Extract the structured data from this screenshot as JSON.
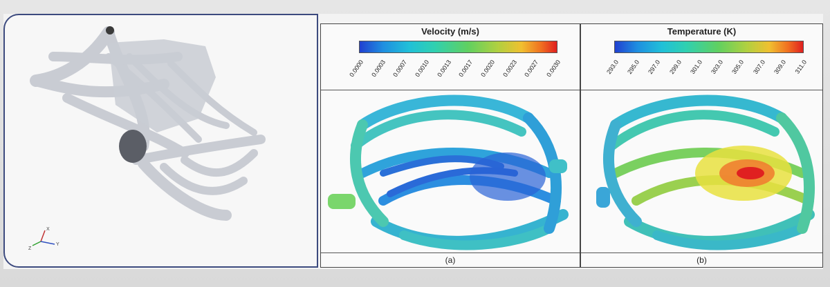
{
  "panel_a": {
    "title": "Velocity (m/s)",
    "ticks": [
      "0.0000",
      "0.0003",
      "0.0007",
      "0.0010",
      "0.0013",
      "0.0017",
      "0.0020",
      "0.0023",
      "0.0027",
      "0.0030"
    ],
    "caption": "(a)"
  },
  "panel_b": {
    "title": "Temperature (K)",
    "ticks": [
      "293.0",
      "295.0",
      "297.0",
      "299.0",
      "301.0",
      "303.0",
      "305.0",
      "307.0",
      "309.0",
      "311.0"
    ],
    "caption": "(b)"
  },
  "axes_labels": {
    "x": "X",
    "y": "Y",
    "z": "Z"
  },
  "colors": {
    "geometry": "#c9ccd3",
    "inlet": "#5b5e66",
    "frame": "#3c4a7e",
    "low": "#2040d0",
    "mid": "#30c8c0",
    "high": "#e02020"
  }
}
